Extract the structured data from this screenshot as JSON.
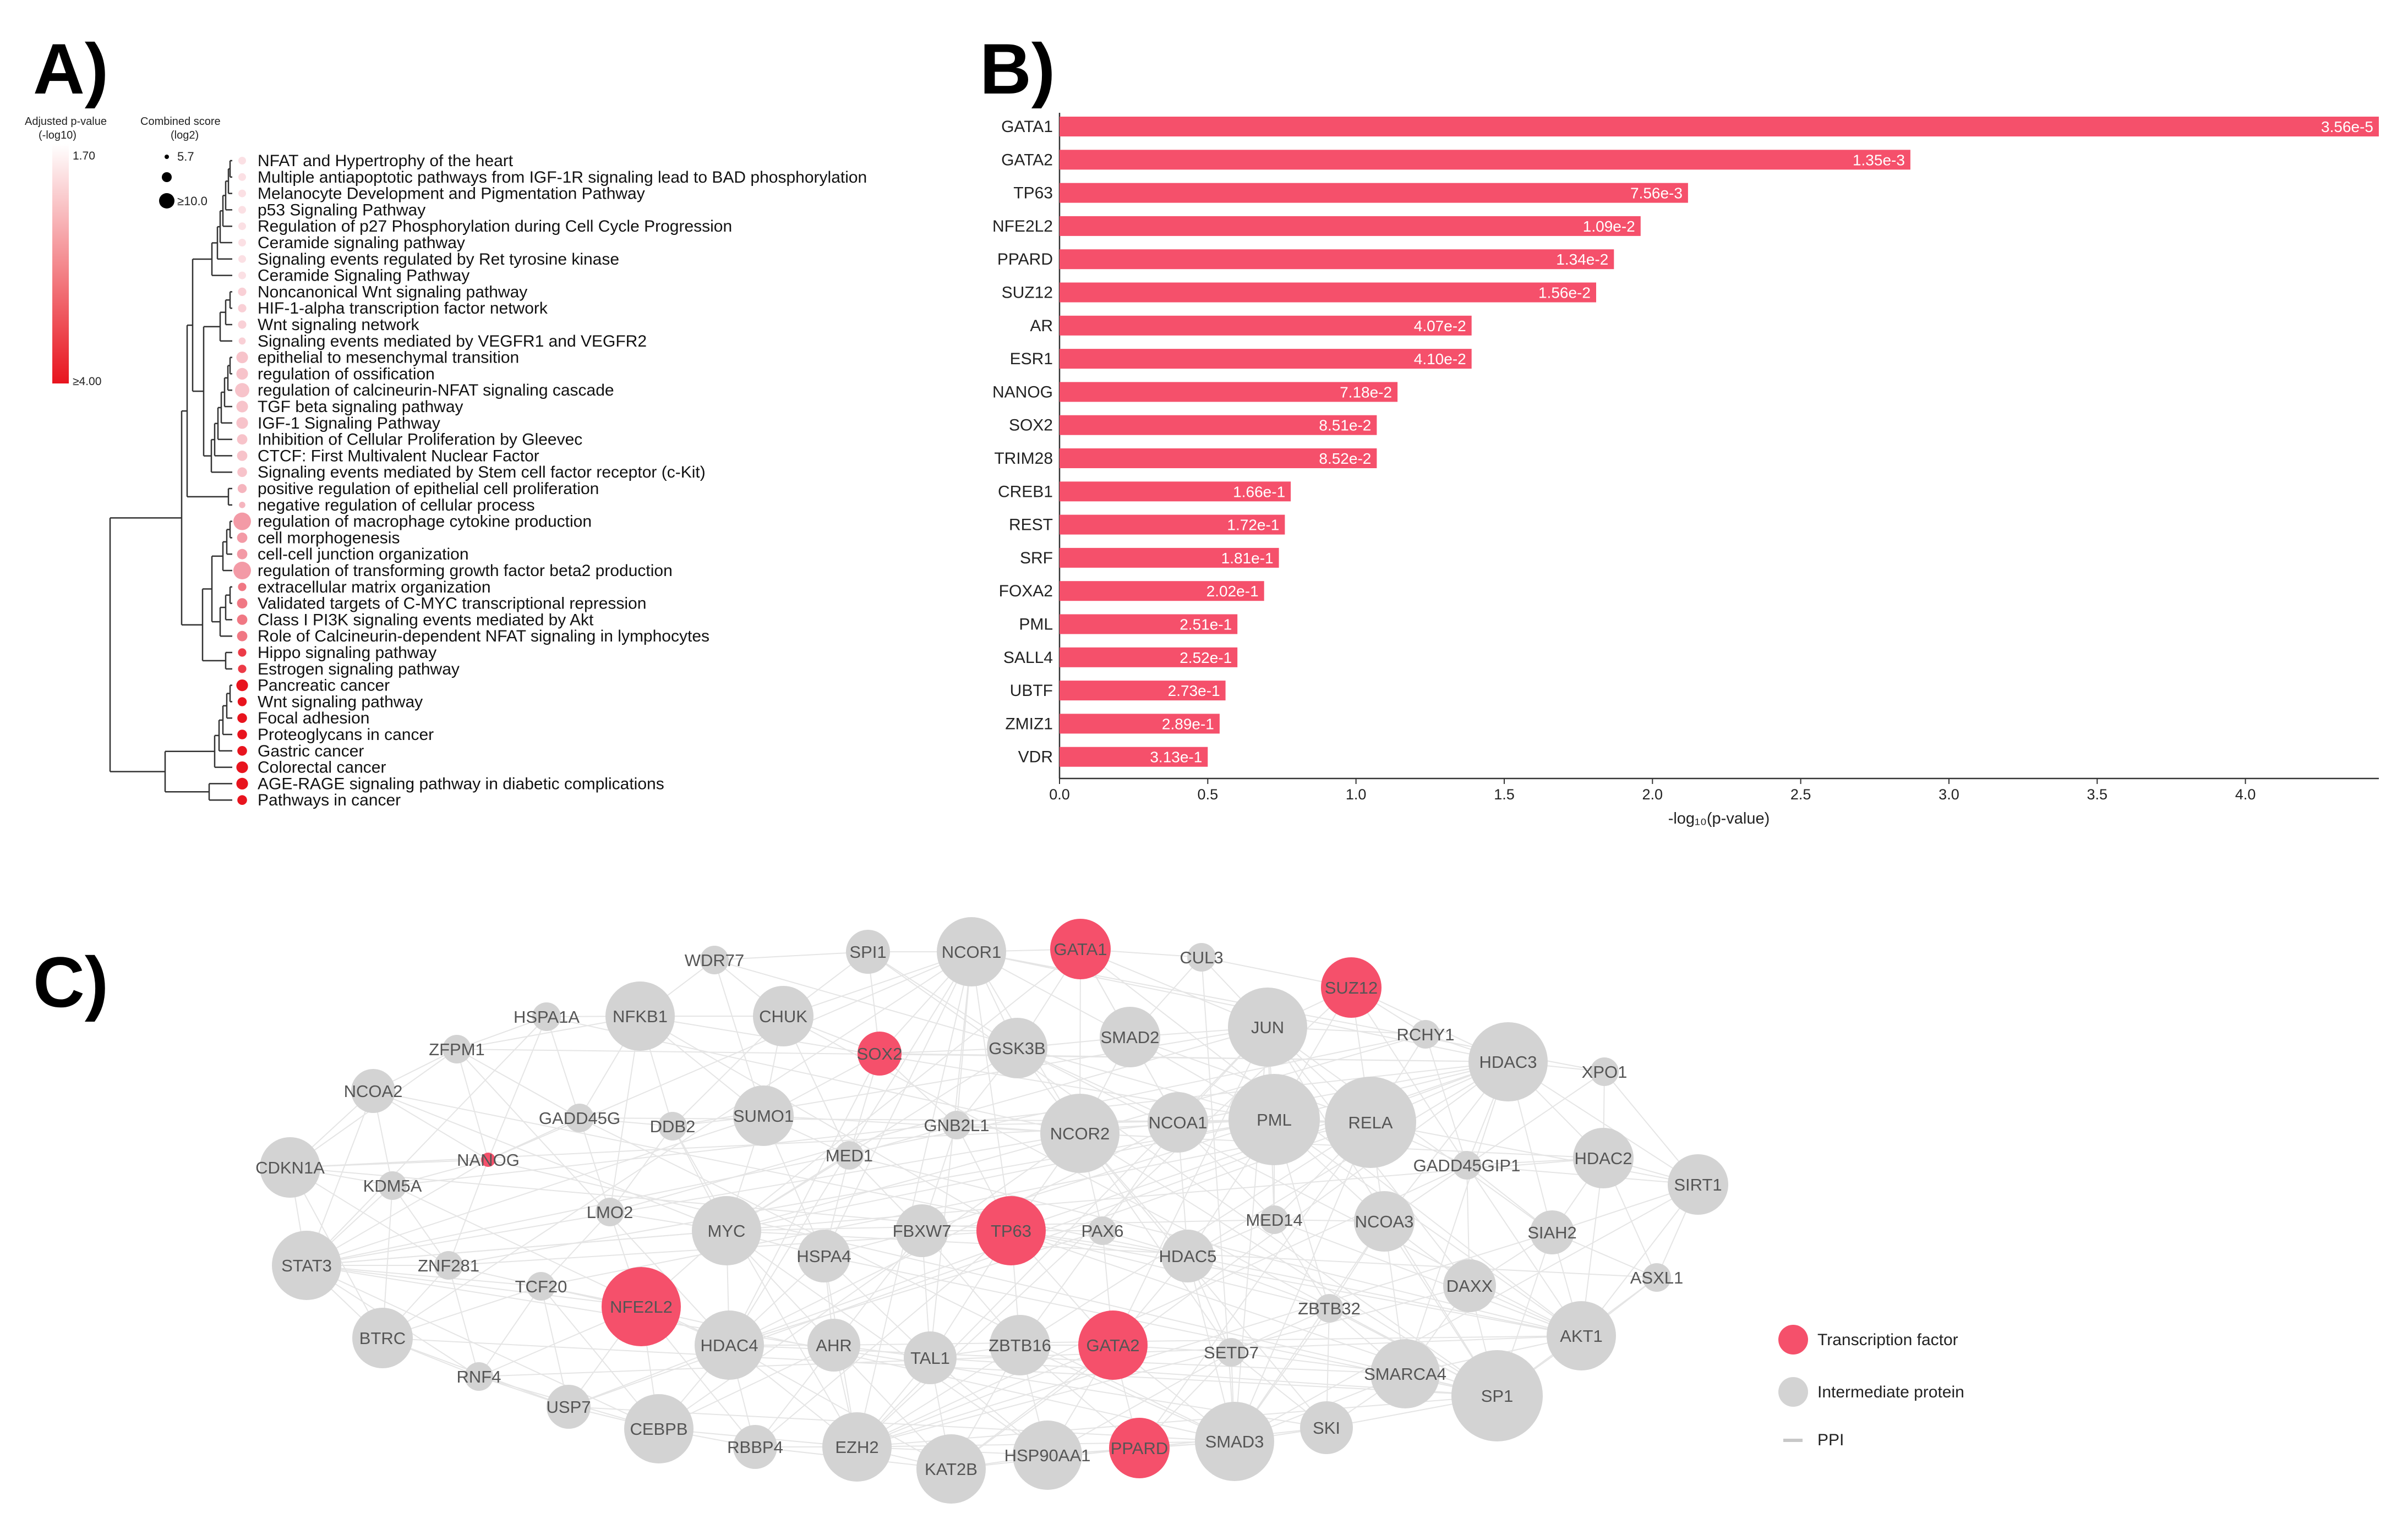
{
  "panels": {
    "a_label": "A)",
    "b_label": "B)",
    "c_label": "C)"
  },
  "colors": {
    "accent": "#F5506B",
    "node_grey": "#D3D3D3",
    "edge": "#E1E1E1",
    "dendrogram": "#333333"
  },
  "panel_a": {
    "legend": {
      "color_title_1": "Adjusted p-value",
      "color_title_2": "(-log10)",
      "color_max": "1.70",
      "color_min": "≥4.00",
      "size_title_1": "Combined score",
      "size_title_2": "(log2)",
      "size_small": "5.7",
      "size_large": "≥10.0"
    },
    "pathways": [
      {
        "name": "NFAT and Hypertrophy of the heart",
        "color": "#FBE0E4",
        "size": 0.25
      },
      {
        "name": "Multiple antiapoptotic pathways from IGF-1R signaling lead to BAD phosphorylation",
        "color": "#FBE0E4",
        "size": 0.25
      },
      {
        "name": "Melanocyte Development and Pigmentation Pathway",
        "color": "#FBE0E4",
        "size": 0.25
      },
      {
        "name": "p53 Signaling Pathway",
        "color": "#FBE0E4",
        "size": 0.25
      },
      {
        "name": "Regulation of p27 Phosphorylation during Cell Cycle Progression",
        "color": "#FBE0E4",
        "size": 0.25
      },
      {
        "name": "Ceramide signaling pathway",
        "color": "#FBE0E4",
        "size": 0.25
      },
      {
        "name": "Signaling events regulated by Ret tyrosine kinase",
        "color": "#FBE0E4",
        "size": 0.25
      },
      {
        "name": "Ceramide Signaling Pathway",
        "color": "#FBE0E4",
        "size": 0.25
      },
      {
        "name": "Noncanonical Wnt signaling pathway",
        "color": "#F9D0D6",
        "size": 0.3
      },
      {
        "name": "HIF-1-alpha transcription factor network",
        "color": "#F9D0D6",
        "size": 0.3
      },
      {
        "name": "Wnt signaling network",
        "color": "#F9D0D6",
        "size": 0.3
      },
      {
        "name": "Signaling events mediated by VEGFR1 and VEGFR2",
        "color": "#F9D0D6",
        "size": 0.2
      },
      {
        "name": "epithelial to mesenchymal transition",
        "color": "#F7C3CA",
        "size": 0.55
      },
      {
        "name": "regulation of ossification",
        "color": "#F7C3CA",
        "size": 0.55
      },
      {
        "name": "regulation of calcineurin-NFAT signaling cascade",
        "color": "#F7C3CA",
        "size": 0.75
      },
      {
        "name": "TGF beta signaling pathway",
        "color": "#F7C3CA",
        "size": 0.55
      },
      {
        "name": "IGF-1 Signaling Pathway",
        "color": "#F7C3CA",
        "size": 0.55
      },
      {
        "name": "Inhibition of Cellular Proliferation by Gleevec",
        "color": "#F7C3CA",
        "size": 0.45
      },
      {
        "name": "CTCF: First Multivalent Nuclear Factor",
        "color": "#F7C3CA",
        "size": 0.45
      },
      {
        "name": "Signaling events mediated by Stem cell factor receptor (c-Kit)",
        "color": "#F7C3CA",
        "size": 0.4
      },
      {
        "name": "positive regulation of epithelial cell proliferation",
        "color": "#F5B5BE",
        "size": 0.35
      },
      {
        "name": "negative regulation of cellular process",
        "color": "#F5B5BE",
        "size": 0.15
      },
      {
        "name": "regulation of macrophage cytokine production",
        "color": "#F39AA6",
        "size": 1.0
      },
      {
        "name": "cell morphogenesis",
        "color": "#F39AA6",
        "size": 0.45
      },
      {
        "name": "cell-cell junction organization",
        "color": "#F39AA6",
        "size": 0.45
      },
      {
        "name": "regulation of transforming growth factor beta2 production",
        "color": "#F39AA6",
        "size": 1.0
      },
      {
        "name": "extracellular matrix organization",
        "color": "#F07884",
        "size": 0.3
      },
      {
        "name": "Validated targets of C-MYC transcriptional repression",
        "color": "#F07884",
        "size": 0.45
      },
      {
        "name": "Class I PI3K signaling events mediated by Akt",
        "color": "#F07884",
        "size": 0.45
      },
      {
        "name": "Role of Calcineurin-dependent NFAT signaling in lymphocytes",
        "color": "#F07884",
        "size": 0.45
      },
      {
        "name": "Hippo signaling pathway",
        "color": "#EC3B47",
        "size": 0.3
      },
      {
        "name": "Estrogen signaling pathway",
        "color": "#EC3B47",
        "size": 0.3
      },
      {
        "name": "Pancreatic cancer",
        "color": "#E8141E",
        "size": 0.55
      },
      {
        "name": "Wnt signaling pathway",
        "color": "#E8141E",
        "size": 0.35
      },
      {
        "name": "Focal adhesion",
        "color": "#E8141E",
        "size": 0.4
      },
      {
        "name": "Proteoglycans in cancer",
        "color": "#E8141E",
        "size": 0.4
      },
      {
        "name": "Gastric cancer",
        "color": "#E8141E",
        "size": 0.4
      },
      {
        "name": "Colorectal cancer",
        "color": "#E8141E",
        "size": 0.55
      },
      {
        "name": "AGE-RAGE signaling pathway in diabetic complications",
        "color": "#E8141E",
        "size": 0.55
      },
      {
        "name": "Pathways in cancer",
        "color": "#E8141E",
        "size": 0.4
      }
    ]
  },
  "chart_data": {
    "type": "bar",
    "orientation": "horizontal",
    "categories": [
      "GATA1",
      "GATA2",
      "TP63",
      "NFE2L2",
      "PPARD",
      "SUZ12",
      "AR",
      "ESR1",
      "NANOG",
      "SOX2",
      "TRIM28",
      "CREB1",
      "REST",
      "SRF",
      "FOXA2",
      "PML",
      "SALL4",
      "UBTF",
      "ZMIZ1",
      "VDR"
    ],
    "values": [
      4.45,
      2.87,
      2.12,
      1.96,
      1.87,
      1.81,
      1.39,
      1.39,
      1.14,
      1.07,
      1.07,
      0.78,
      0.76,
      0.74,
      0.69,
      0.6,
      0.6,
      0.56,
      0.54,
      0.5
    ],
    "value_labels": [
      "3.56e-5",
      "1.35e-3",
      "7.56e-3",
      "1.09e-2",
      "1.34e-2",
      "1.56e-2",
      "4.07e-2",
      "4.10e-2",
      "7.18e-2",
      "8.51e-2",
      "8.52e-2",
      "1.66e-1",
      "1.72e-1",
      "1.81e-1",
      "2.02e-1",
      "2.51e-1",
      "2.52e-1",
      "2.73e-1",
      "2.89e-1",
      "3.13e-1"
    ],
    "xlabel": "-log₁₀(p-value)",
    "ylabel": "",
    "xlim": [
      0,
      4.45
    ],
    "xticks": [
      0.0,
      0.5,
      1.0,
      1.5,
      2.0,
      2.5,
      3.0,
      3.5,
      4.0
    ],
    "xtick_labels": [
      "0.0",
      "0.5",
      "1.0",
      "1.5",
      "2.0",
      "2.5",
      "3.0",
      "3.5",
      "4.0"
    ],
    "color": "#F5506B"
  },
  "network": {
    "legend": {
      "tf": "Transcription factor",
      "intermediate": "Intermediate protein",
      "ppi": "PPI"
    },
    "nodes": [
      {
        "name": "WDR77",
        "tf": false,
        "size": 1
      },
      {
        "name": "SPI1",
        "tf": false,
        "size": 2
      },
      {
        "name": "NCOR1",
        "tf": false,
        "size": 5
      },
      {
        "name": "GATA1",
        "tf": true,
        "size": 4
      },
      {
        "name": "CUL3",
        "tf": false,
        "size": 1
      },
      {
        "name": "SUZ12",
        "tf": true,
        "size": 4
      },
      {
        "name": "HSPA1A",
        "tf": false,
        "size": 1
      },
      {
        "name": "NFKB1",
        "tf": false,
        "size": 5
      },
      {
        "name": "CHUK",
        "tf": false,
        "size": 4
      },
      {
        "name": "SOX2",
        "tf": true,
        "size": 2
      },
      {
        "name": "GSK3B",
        "tf": false,
        "size": 4
      },
      {
        "name": "SMAD2",
        "tf": false,
        "size": 4
      },
      {
        "name": "JUN",
        "tf": false,
        "size": 6
      },
      {
        "name": "RCHY1",
        "tf": false,
        "size": 1
      },
      {
        "name": "HDAC3",
        "tf": false,
        "size": 6
      },
      {
        "name": "XPO1",
        "tf": false,
        "size": 1
      },
      {
        "name": "ZFPM1",
        "tf": false,
        "size": 1
      },
      {
        "name": "NCOA2",
        "tf": false,
        "size": 2
      },
      {
        "name": "GADD45G",
        "tf": false,
        "size": 1
      },
      {
        "name": "DDB2",
        "tf": false,
        "size": 1
      },
      {
        "name": "SUMO1",
        "tf": false,
        "size": 4
      },
      {
        "name": "GNB2L1",
        "tf": false,
        "size": 1
      },
      {
        "name": "NCOR2",
        "tf": false,
        "size": 6
      },
      {
        "name": "NCOA1",
        "tf": false,
        "size": 4
      },
      {
        "name": "PML",
        "tf": false,
        "size": 7
      },
      {
        "name": "RELA",
        "tf": false,
        "size": 7
      },
      {
        "name": "GADD45GIP1",
        "tf": false,
        "size": 1
      },
      {
        "name": "HDAC2",
        "tf": false,
        "size": 4
      },
      {
        "name": "CDKN1A",
        "tf": false,
        "size": 4
      },
      {
        "name": "NANOG",
        "tf": true,
        "size": 0
      },
      {
        "name": "KDM5A",
        "tf": false,
        "size": 1
      },
      {
        "name": "MED1",
        "tf": false,
        "size": 1
      },
      {
        "name": "SIRT1",
        "tf": false,
        "size": 4
      },
      {
        "name": "LMO2",
        "tf": false,
        "size": 1
      },
      {
        "name": "MYC",
        "tf": false,
        "size": 5
      },
      {
        "name": "FBXW7",
        "tf": false,
        "size": 3
      },
      {
        "name": "TP63",
        "tf": true,
        "size": 5
      },
      {
        "name": "PAX6",
        "tf": false,
        "size": 1
      },
      {
        "name": "MED14",
        "tf": false,
        "size": 1
      },
      {
        "name": "NCOA3",
        "tf": false,
        "size": 4
      },
      {
        "name": "SIAH2",
        "tf": false,
        "size": 2
      },
      {
        "name": "STAT3",
        "tf": false,
        "size": 5
      },
      {
        "name": "ZNF281",
        "tf": false,
        "size": 1
      },
      {
        "name": "HSPA4",
        "tf": false,
        "size": 3
      },
      {
        "name": "HDAC5",
        "tf": false,
        "size": 3
      },
      {
        "name": "ASXL1",
        "tf": false,
        "size": 1
      },
      {
        "name": "TCF20",
        "tf": false,
        "size": 1
      },
      {
        "name": "DAXX",
        "tf": false,
        "size": 3
      },
      {
        "name": "NFE2L2",
        "tf": true,
        "size": 6
      },
      {
        "name": "ZBTB32",
        "tf": false,
        "size": 1
      },
      {
        "name": "BTRC",
        "tf": false,
        "size": 4
      },
      {
        "name": "HDAC4",
        "tf": false,
        "size": 5
      },
      {
        "name": "AHR",
        "tf": false,
        "size": 3
      },
      {
        "name": "ZBTB16",
        "tf": false,
        "size": 4
      },
      {
        "name": "GATA2",
        "tf": true,
        "size": 5
      },
      {
        "name": "SETD7",
        "tf": false,
        "size": 1
      },
      {
        "name": "AKT1",
        "tf": false,
        "size": 5
      },
      {
        "name": "TAL1",
        "tf": false,
        "size": 3
      },
      {
        "name": "SMARCA4",
        "tf": false,
        "size": 5
      },
      {
        "name": "RNF4",
        "tf": false,
        "size": 1
      },
      {
        "name": "USP7",
        "tf": false,
        "size": 2
      },
      {
        "name": "SP1",
        "tf": false,
        "size": 7
      },
      {
        "name": "CEBPB",
        "tf": false,
        "size": 5
      },
      {
        "name": "RBBP4",
        "tf": false,
        "size": 2
      },
      {
        "name": "EZH2",
        "tf": false,
        "size": 5
      },
      {
        "name": "KAT2B",
        "tf": false,
        "size": 5
      },
      {
        "name": "HSP90AA1",
        "tf": false,
        "size": 5
      },
      {
        "name": "PPARD",
        "tf": true,
        "size": 4
      },
      {
        "name": "SMAD3",
        "tf": false,
        "size": 6
      },
      {
        "name": "SKI",
        "tf": false,
        "size": 3
      }
    ]
  }
}
